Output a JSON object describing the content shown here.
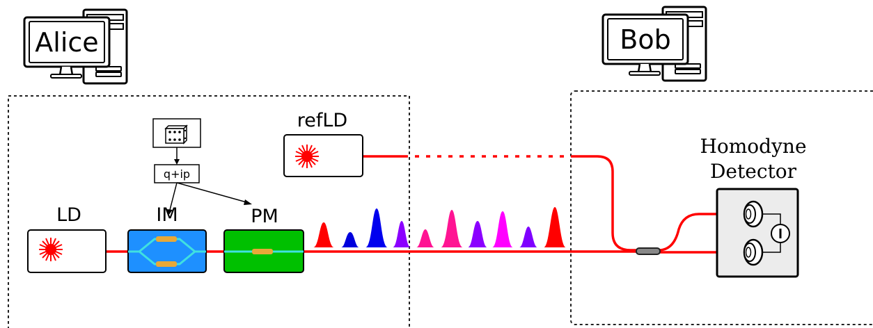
{
  "parties": {
    "alice": {
      "label": "Alice"
    },
    "bob": {
      "label": "Bob"
    }
  },
  "components": {
    "laser": {
      "label": "LD"
    },
    "intensity_modulator": {
      "label": "IM"
    },
    "phase_modulator": {
      "label": "PM"
    },
    "reference_laser": {
      "label": "refLD"
    },
    "modulation_value": {
      "label": "q+ip"
    },
    "detector": {
      "label_line1": "Homodyne",
      "label_line2": "Detector"
    }
  },
  "icons": {
    "random_source": "dice-icon",
    "laser_source": "laser-burst-icon",
    "computer": "computer-icon",
    "subtraction": "minus-icon",
    "photodiode": "photodiode-icon"
  },
  "colors": {
    "fiber": "#ff0000",
    "im_body": "#1e90ff",
    "pm_body": "#00c000",
    "waveguide": "#40e0e0",
    "electrode": "#e8a838",
    "pulses": [
      "#ff0000",
      "#0000dd",
      "#0000ee",
      "#8b00ff",
      "#ff1493",
      "#ff1493",
      "#8b00ff",
      "#ff00ff",
      "#7f00ff",
      "#ff0000"
    ]
  }
}
